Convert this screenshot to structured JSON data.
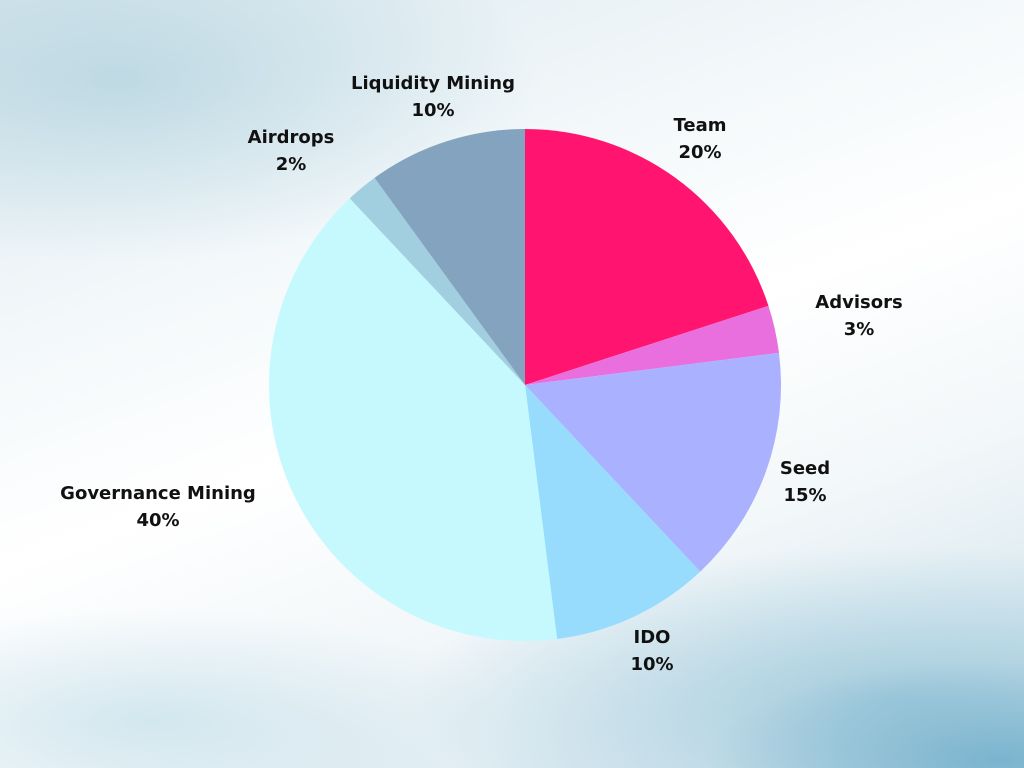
{
  "chart_data": {
    "type": "pie",
    "slices": [
      {
        "label": "Team",
        "value": 20,
        "value_label": "20%",
        "color": "#ff1470"
      },
      {
        "label": "Advisors",
        "value": 3,
        "value_label": "3%",
        "color": "#e96fde"
      },
      {
        "label": "Seed",
        "value": 15,
        "value_label": "15%",
        "color": "#aab2ff"
      },
      {
        "label": "IDO",
        "value": 10,
        "value_label": "10%",
        "color": "#97dcfd"
      },
      {
        "label": "Governance Mining",
        "value": 40,
        "value_label": "40%",
        "color": "#c5f9fd"
      },
      {
        "label": "Airdrops",
        "value": 2,
        "value_label": "2%",
        "color": "#a2cfdf"
      },
      {
        "label": "Liquidity Mining",
        "value": 10,
        "value_label": "10%",
        "color": "#83a3bf"
      }
    ],
    "start": "12 o'clock",
    "direction": "clockwise",
    "legend": "none",
    "labels": "outside"
  }
}
